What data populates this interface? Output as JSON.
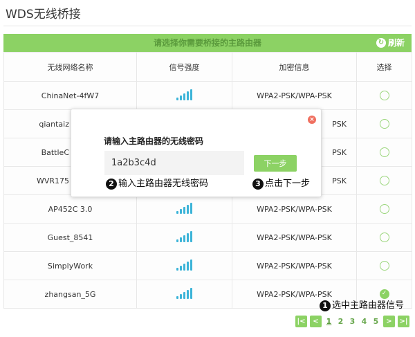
{
  "title": "WDS无线桥接",
  "bar": {
    "label": "请选择你需要桥接的主路由器",
    "refresh": "刷新"
  },
  "columns": [
    "无线网络名称",
    "信号强度",
    "加密信息",
    "选择"
  ],
  "rows": [
    {
      "ssid": "ChinaNet-4fW7",
      "signal": 4,
      "enc": "WPA2-PSK/WPA-PSK",
      "selected": false
    },
    {
      "ssid": "qiantaiz",
      "signal": 4,
      "enc": "PSK",
      "selected": false
    },
    {
      "ssid": "BattleC",
      "signal": 4,
      "enc": "PSK",
      "selected": false
    },
    {
      "ssid": "WVR175",
      "signal": 4,
      "enc": "PSK",
      "selected": false
    },
    {
      "ssid": "AP452C 3.0",
      "signal": 4,
      "enc": "WPA2-PSK/WPA-PSK",
      "selected": false
    },
    {
      "ssid": "Guest_8541",
      "signal": 4,
      "enc": "WPA2-PSK/WPA-PSK",
      "selected": false
    },
    {
      "ssid": "SimplyWork",
      "signal": 4,
      "enc": "WPA2-PSK/WPA-PSK",
      "selected": false
    },
    {
      "ssid": "zhangsan_5G",
      "signal": 4,
      "enc": "WPA2-PSK/WPA-PSK",
      "selected": true
    }
  ],
  "modal": {
    "label": "请输入主路由器的无线密码",
    "password": "1a2b3c4d",
    "next": "下一步"
  },
  "annotations": {
    "a1": {
      "n": "1",
      "text": "选中主路由器信号"
    },
    "a2": {
      "n": "2",
      "text": "输入主路由器无线密码"
    },
    "a3": {
      "n": "3",
      "text": "点击下一步"
    }
  },
  "pager": {
    "pages": [
      "1",
      "2",
      "3",
      "4",
      "5"
    ],
    "current": "1"
  },
  "colors": {
    "accent": "#8cd264",
    "signal": "#3cb4d8"
  }
}
